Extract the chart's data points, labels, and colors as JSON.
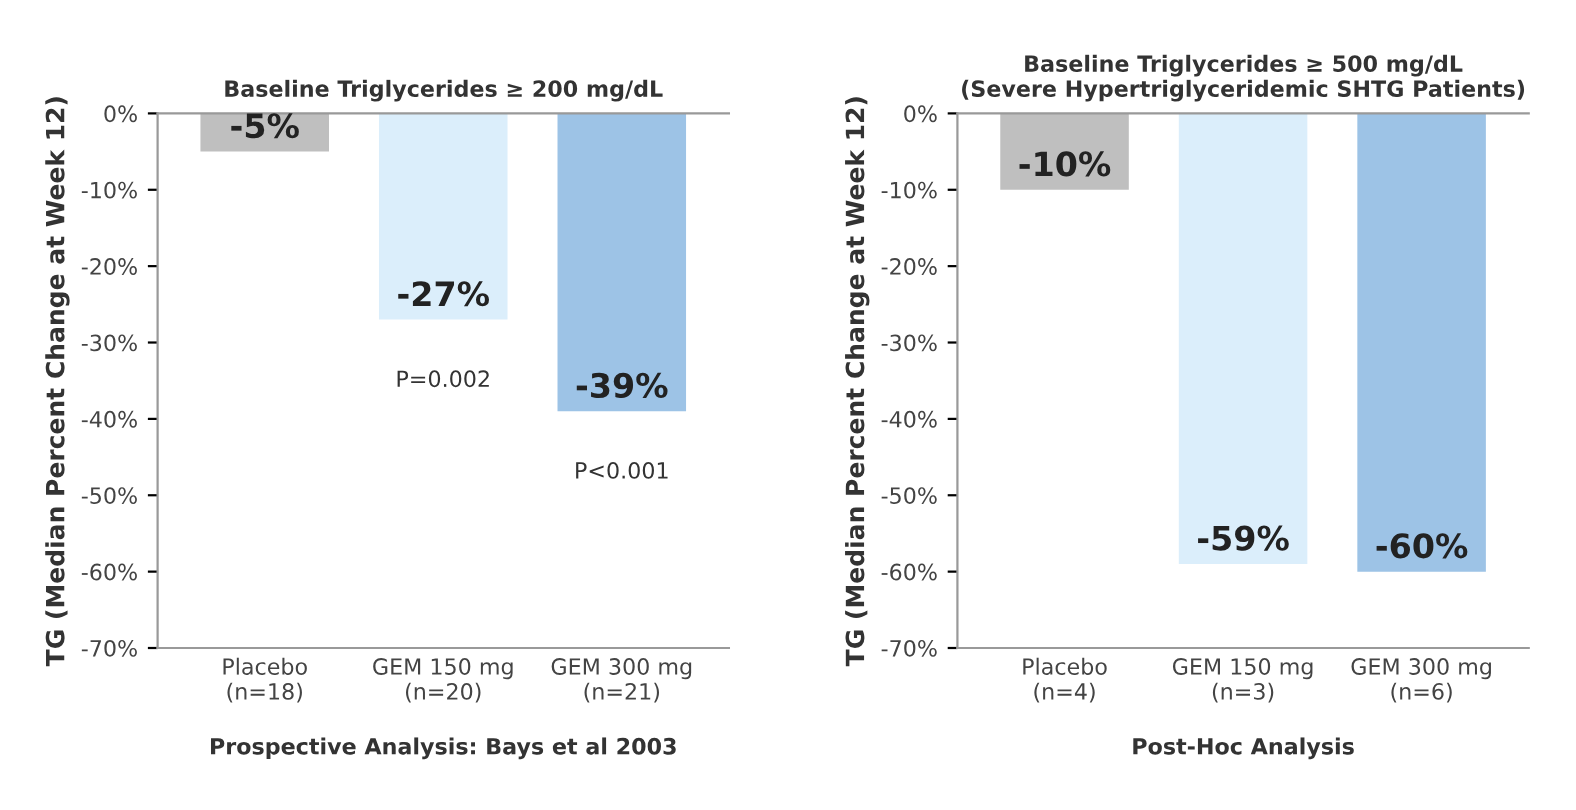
{
  "chart_data": [
    {
      "type": "bar",
      "title": "Baseline Triglycerides ≥ 200 mg/dL",
      "ylabel": "TG (Median Percent Change at Week 12)",
      "xlabel": "Prospective Analysis: Bays et al 2003",
      "categories": [
        "Placebo\n(n=18)",
        "GEM 150 mg\n(n=20)",
        "GEM 300 mg\n(n=21)"
      ],
      "values": [
        -5,
        -27,
        -39
      ],
      "value_labels": [
        "-5%",
        "-27%",
        "-39%"
      ],
      "colors": [
        "#bfbfbf",
        "#dbeefb",
        "#9dc3e6"
      ],
      "ylim": [
        -70,
        0
      ],
      "yticks": [
        {
          "value": 0,
          "label": "0%"
        },
        {
          "value": -10,
          "label": "-10%"
        },
        {
          "value": -20,
          "label": "-20%"
        },
        {
          "value": -30,
          "label": "-30%"
        },
        {
          "value": -40,
          "label": "-40%"
        },
        {
          "value": -50,
          "label": "-50%"
        },
        {
          "value": -60,
          "label": "-60%"
        },
        {
          "value": -70,
          "label": "-70%"
        }
      ],
      "annotations": [
        "P=0.002",
        "P<0.001"
      ]
    },
    {
      "type": "bar",
      "title": "Baseline Triglycerides ≥ 500 mg/dL\n(Severe Hypertriglyceridemic SHTG Patients)",
      "ylabel": "TG (Median Percent Change at Week 12)",
      "xlabel": "Post-Hoc Analysis",
      "categories": [
        "Placebo\n(n=4)",
        "GEM 150 mg\n(n=3)",
        "GEM 300 mg\n(n=6)"
      ],
      "values": [
        -10,
        -59,
        -60
      ],
      "value_labels": [
        "-10%",
        "-59%",
        "-60%"
      ],
      "colors": [
        "#bfbfbf",
        "#dbeefb",
        "#9dc3e6"
      ],
      "ylim": [
        -70,
        0
      ],
      "yticks": [
        {
          "value": 0,
          "label": "0%"
        },
        {
          "value": -10,
          "label": "-10%"
        },
        {
          "value": -20,
          "label": "-20%"
        },
        {
          "value": -30,
          "label": "-30%"
        },
        {
          "value": -40,
          "label": "-40%"
        },
        {
          "value": -50,
          "label": "-50%"
        },
        {
          "value": -60,
          "label": "-60%"
        },
        {
          "value": -70,
          "label": "-70%"
        }
      ]
    }
  ]
}
